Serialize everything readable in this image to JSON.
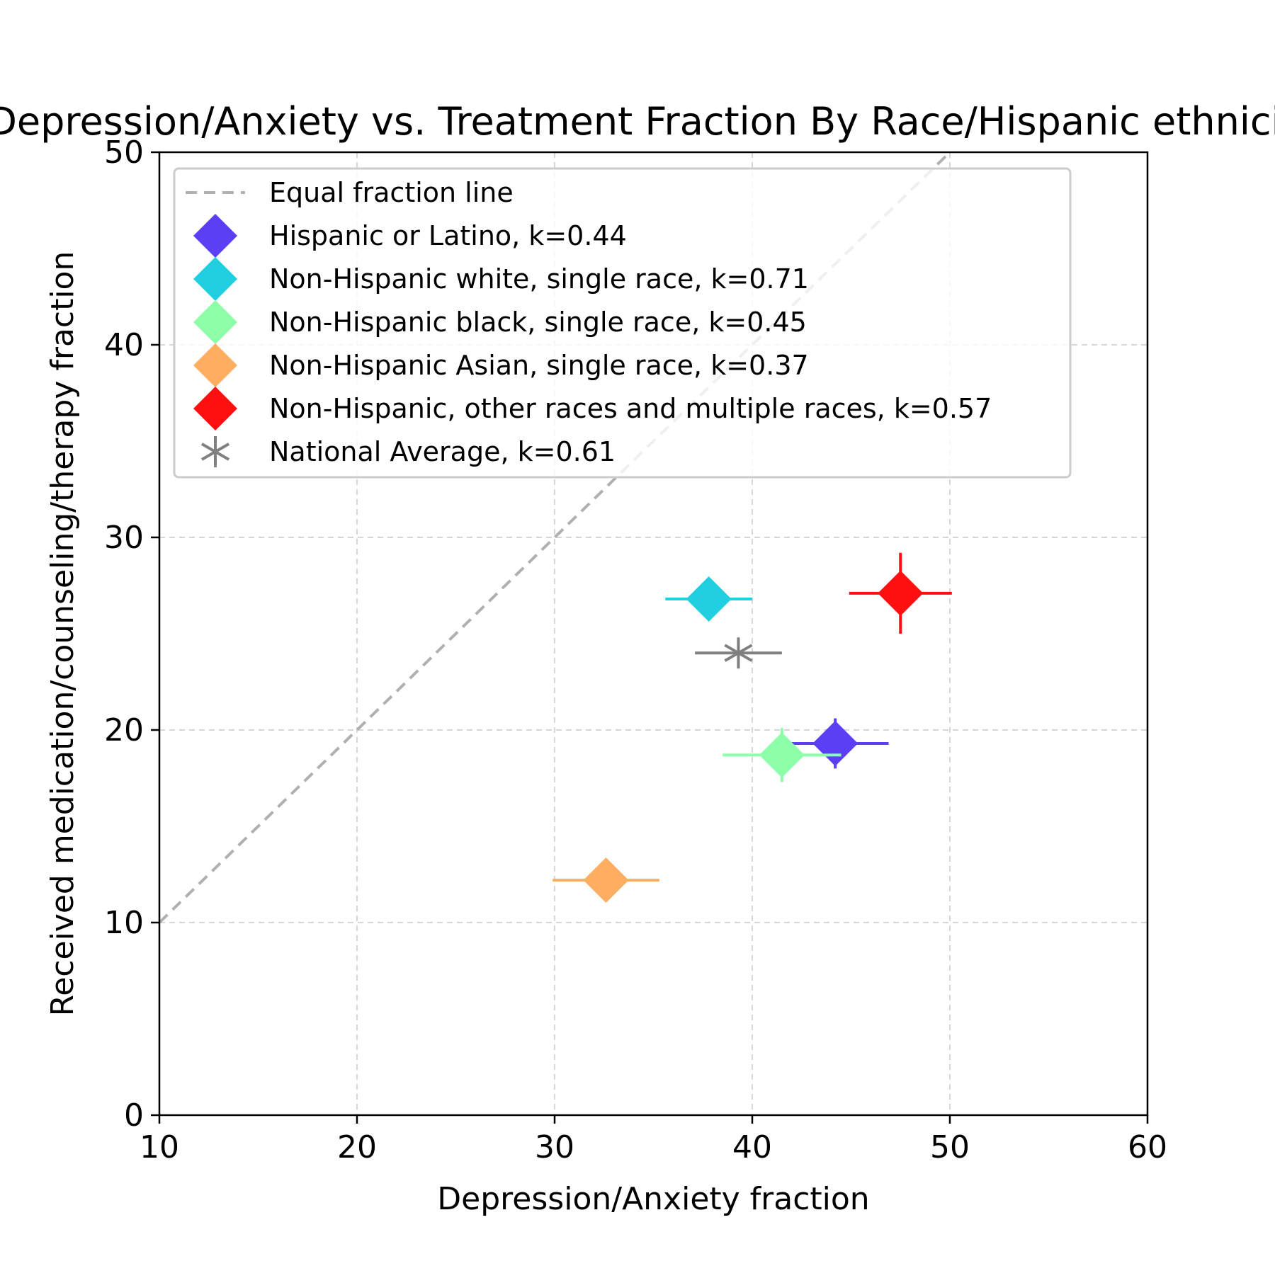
{
  "chart_data": {
    "type": "scatter",
    "title": "Depression/Anxiety vs. Treatment Fraction By Race/Hispanic ethnicity",
    "xlabel": "Depression/Anxiety fraction",
    "ylabel": "Received medication/counseling/therapy fraction",
    "xlim": [
      10,
      60
    ],
    "ylim": [
      0,
      50
    ],
    "xticks": [
      "10",
      "20",
      "30",
      "40",
      "50",
      "60"
    ],
    "yticks": [
      "0",
      "10",
      "20",
      "30",
      "40",
      "50"
    ],
    "grid": true,
    "legend_position": "top-left",
    "reference_line": {
      "name": "Equal fraction line",
      "x": [
        10,
        50
      ],
      "y": [
        10,
        50
      ],
      "color": "#b0b0b0",
      "style": "dashed"
    },
    "series": [
      {
        "name": "Hispanic or Latino, k=0.44",
        "marker": "diamond",
        "color": "#5a3ff5",
        "x": 44.2,
        "y": 19.3,
        "x_err": 2.7,
        "y_err": 1.3
      },
      {
        "name": "Non-Hispanic white, single race, k=0.71",
        "marker": "diamond",
        "color": "#20d0e0",
        "x": 37.8,
        "y": 26.8,
        "x_err": 2.2,
        "y_err": 0.6
      },
      {
        "name": "Non-Hispanic black, single race, k=0.45",
        "marker": "diamond",
        "color": "#8cffa8",
        "x": 41.5,
        "y": 18.7,
        "x_err": 3.0,
        "y_err": 1.4
      },
      {
        "name": "Non-Hispanic Asian, single race, k=0.37",
        "marker": "diamond",
        "color": "#fdae60",
        "x": 32.6,
        "y": 12.2,
        "x_err": 2.7,
        "y_err": 1.1
      },
      {
        "name": "Non-Hispanic, other races and multiple races, k=0.57",
        "marker": "diamond",
        "color": "#ff1010",
        "x": 47.5,
        "y": 27.1,
        "x_err": 2.6,
        "y_err": 2.1
      },
      {
        "name": "National Average, k=0.61",
        "marker": "asterisk",
        "color": "#808080",
        "x": 39.3,
        "y": 24.0,
        "x_err": 2.2,
        "y_err": 0.5
      }
    ]
  }
}
